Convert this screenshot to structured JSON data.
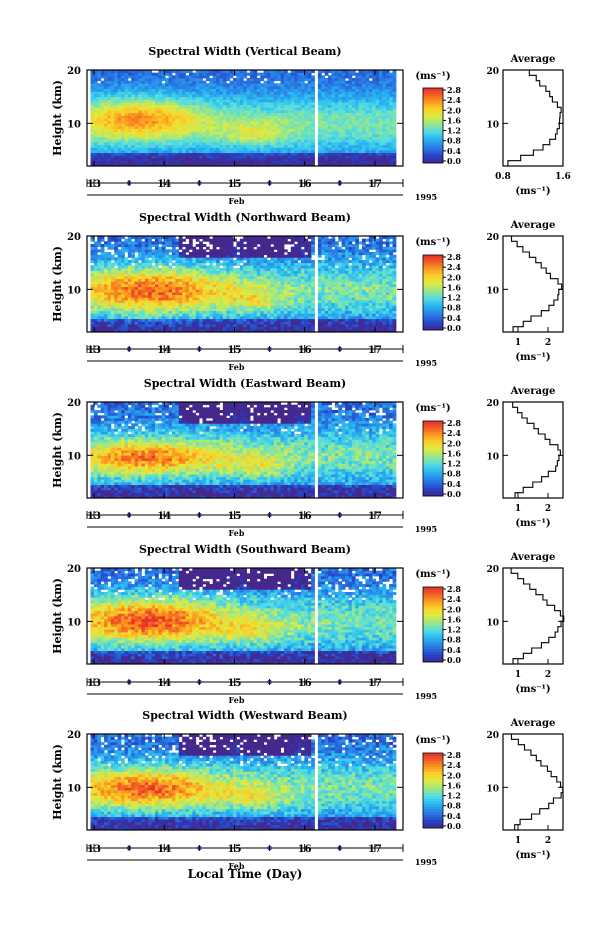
{
  "chart_data": {
    "type": "heatmap",
    "x_unit_label": "Feb",
    "year": "1995",
    "xlabel": "Local Time (Day)",
    "ylabel": "Height (km)",
    "xlim": [
      12.9,
      17.4
    ],
    "data_x_range": [
      12.95,
      17.3
    ],
    "data_gap": [
      16.13,
      16.21
    ],
    "x_ticks": [
      13,
      14,
      15,
      16,
      17
    ],
    "ylim": [
      2,
      20
    ],
    "y_ticks": [
      10,
      20
    ],
    "colorbar": {
      "unit": "(ms⁻¹)",
      "range": [
        0.0,
        2.8
      ],
      "tick_labels": [
        "2.8",
        "2.4",
        "2.0",
        "1.6",
        "1.2",
        "0.8",
        "0.4",
        "0.0"
      ]
    },
    "average_title": "Average",
    "average_unit": "(ms⁻¹)",
    "panels": [
      {
        "title": "Spectral Width (Vertical Beam)",
        "avg_xlim": [
          0.8,
          1.6
        ],
        "avg_xticks": [
          "0.8",
          "1.6"
        ],
        "avg_profile": {
          "height": [
            2.5,
            3.5,
            4.5,
            5.5,
            6.5,
            7.5,
            8.5,
            9.5,
            10.5,
            11.5,
            12.5,
            13.5,
            14.5,
            15.5,
            16.5,
            17.5,
            18.5,
            19.5
          ],
          "value": [
            0.85,
            1.05,
            1.2,
            1.32,
            1.42,
            1.5,
            1.53,
            1.55,
            1.54,
            1.55,
            1.56,
            1.53,
            1.47,
            1.41,
            1.36,
            1.3,
            1.24,
            1.16
          ]
        },
        "hot_region": {
          "x": [
            13.0,
            14.3
          ],
          "y": [
            8,
            14
          ],
          "level": 2.3
        }
      },
      {
        "title": "Spectral Width (Northward Beam)",
        "avg_xlim": [
          0.5,
          2.5
        ],
        "avg_xticks": [
          "1",
          "2"
        ],
        "avg_profile": {
          "height": [
            2.5,
            3.5,
            4.5,
            5.5,
            6.5,
            7.5,
            8.5,
            9.5,
            10.5,
            11.5,
            12.5,
            13.5,
            14.5,
            15.5,
            16.5,
            17.5,
            18.5,
            19.5
          ],
          "value": [
            0.85,
            1.15,
            1.45,
            1.75,
            2.0,
            2.2,
            2.35,
            2.4,
            2.45,
            2.3,
            2.1,
            1.9,
            1.75,
            1.6,
            1.4,
            1.2,
            1.0,
            0.75
          ]
        },
        "hot_region": {
          "x": [
            13.0,
            14.6
          ],
          "y": [
            6.5,
            13
          ],
          "level": 2.5
        }
      },
      {
        "title": "Spectral Width (Eastward Beam)",
        "avg_xlim": [
          0.5,
          2.5
        ],
        "avg_xticks": [
          "1",
          "2"
        ],
        "avg_profile": {
          "height": [
            2.5,
            3.5,
            4.5,
            5.5,
            6.5,
            7.5,
            8.5,
            9.5,
            10.5,
            11.5,
            12.5,
            13.5,
            14.5,
            15.5,
            16.5,
            17.5,
            18.5,
            19.5
          ],
          "value": [
            0.9,
            1.2,
            1.5,
            1.8,
            2.05,
            2.25,
            2.35,
            2.4,
            2.45,
            2.3,
            2.1,
            1.9,
            1.7,
            1.5,
            1.3,
            1.1,
            0.95,
            0.8
          ]
        },
        "hot_region": {
          "x": [
            13.0,
            14.5
          ],
          "y": [
            7,
            12
          ],
          "level": 2.4
        }
      },
      {
        "title": "Spectral Width (Southward Beam)",
        "avg_xlim": [
          0.5,
          2.5
        ],
        "avg_xticks": [
          "1",
          "2"
        ],
        "avg_profile": {
          "height": [
            2.5,
            3.5,
            4.5,
            5.5,
            6.5,
            7.5,
            8.5,
            9.5,
            10.5,
            11.5,
            12.5,
            13.5,
            14.5,
            15.5,
            16.5,
            17.5,
            18.5,
            19.5
          ],
          "value": [
            0.85,
            1.15,
            1.45,
            1.75,
            2.0,
            2.2,
            2.35,
            2.45,
            2.5,
            2.4,
            2.2,
            2.0,
            1.8,
            1.6,
            1.4,
            1.2,
            1.0,
            0.8
          ]
        },
        "hot_region": {
          "x": [
            13.0,
            14.6
          ],
          "y": [
            7,
            13.5
          ],
          "level": 2.6
        }
      },
      {
        "title": "Spectral Width (Westward Beam)",
        "avg_xlim": [
          0.5,
          2.5
        ],
        "avg_xticks": [
          "1",
          "2"
        ],
        "avg_profile": {
          "height": [
            2.5,
            3.5,
            4.5,
            5.5,
            6.5,
            7.5,
            8.5,
            9.5,
            10.5,
            11.5,
            12.5,
            13.5,
            14.5,
            15.5,
            16.5,
            17.5,
            18.5,
            19.5
          ],
          "value": [
            0.85,
            1.1,
            1.45,
            1.75,
            2.0,
            2.2,
            2.4,
            2.5,
            2.45,
            2.3,
            2.1,
            1.95,
            1.8,
            1.6,
            1.4,
            1.2,
            1.0,
            0.8
          ]
        },
        "hot_region": {
          "x": [
            13.0,
            14.5
          ],
          "y": [
            7,
            12.5
          ],
          "level": 2.5
        }
      }
    ]
  }
}
